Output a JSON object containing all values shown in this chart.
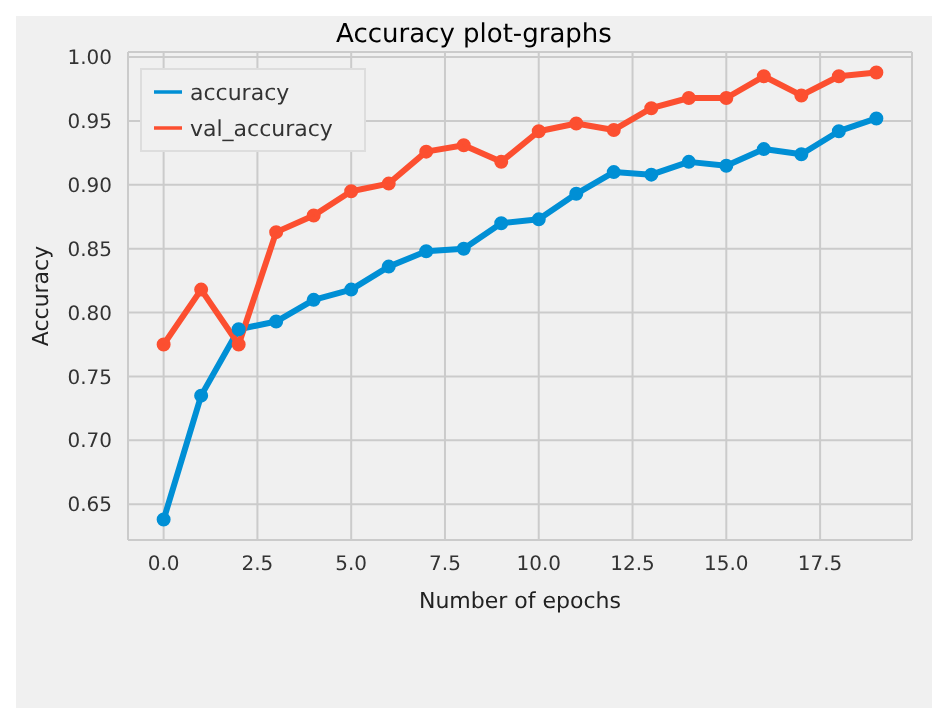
{
  "chart_data": {
    "type": "line",
    "title": "Accuracy plot-graphs",
    "xlabel": "Number of epochs",
    "ylabel": "Accuracy",
    "x": [
      0,
      1,
      2,
      3,
      4,
      5,
      6,
      7,
      8,
      9,
      10,
      11,
      12,
      13,
      14,
      15,
      16,
      17,
      18,
      19
    ],
    "series": [
      {
        "name": "accuracy",
        "color": "#008fd5",
        "values": [
          0.638,
          0.735,
          0.787,
          0.793,
          0.81,
          0.818,
          0.836,
          0.848,
          0.85,
          0.87,
          0.873,
          0.893,
          0.91,
          0.908,
          0.918,
          0.915,
          0.928,
          0.924,
          0.942,
          0.952
        ]
      },
      {
        "name": "val_accuracy",
        "color": "#fc4f30",
        "values": [
          0.775,
          0.818,
          0.775,
          0.863,
          0.876,
          0.895,
          0.901,
          0.926,
          0.931,
          0.918,
          0.942,
          0.948,
          0.943,
          0.96,
          0.968,
          0.968,
          0.985,
          0.97,
          0.985,
          0.988
        ]
      }
    ],
    "xlim": [
      -0.95,
      19.95
    ],
    "xticks": [
      {
        "value": 0,
        "label": "0.0"
      },
      {
        "value": 2.5,
        "label": "2.5"
      },
      {
        "value": 5,
        "label": "5.0"
      },
      {
        "value": 7.5,
        "label": "7.5"
      },
      {
        "value": 10,
        "label": "10.0"
      },
      {
        "value": 12.5,
        "label": "12.5"
      },
      {
        "value": 15,
        "label": "15.0"
      },
      {
        "value": 17.5,
        "label": "17.5"
      }
    ],
    "ylim": [
      0.622,
      1.004
    ],
    "yticks": [
      {
        "value": 0.65,
        "label": "0.65"
      },
      {
        "value": 0.7,
        "label": "0.70"
      },
      {
        "value": 0.75,
        "label": "0.75"
      },
      {
        "value": 0.8,
        "label": "0.80"
      },
      {
        "value": 0.85,
        "label": "0.85"
      },
      {
        "value": 0.9,
        "label": "0.90"
      },
      {
        "value": 0.95,
        "label": "0.95"
      },
      {
        "value": 1.0,
        "label": "1.00"
      }
    ],
    "grid": true,
    "legend": "top left",
    "marker": "circle",
    "line_style": "solid"
  }
}
